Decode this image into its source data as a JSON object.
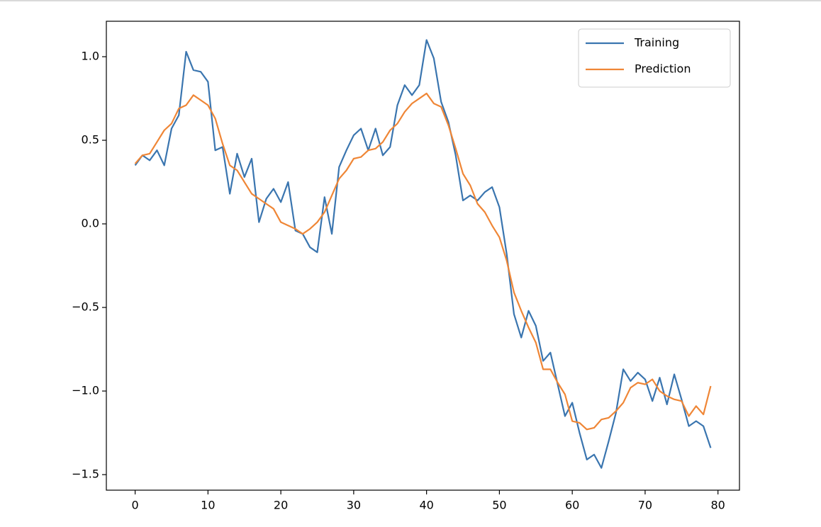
{
  "chart_data": {
    "type": "line",
    "x": [
      0,
      1,
      2,
      3,
      4,
      5,
      6,
      7,
      8,
      9,
      10,
      11,
      12,
      13,
      14,
      15,
      16,
      17,
      18,
      19,
      20,
      21,
      22,
      23,
      24,
      25,
      26,
      27,
      28,
      29,
      30,
      31,
      32,
      33,
      34,
      35,
      36,
      37,
      38,
      39,
      40,
      41,
      42,
      43,
      44,
      45,
      46,
      47,
      48,
      49,
      50,
      51,
      52,
      53,
      54,
      55,
      56,
      57,
      58,
      59,
      60,
      61,
      62,
      63,
      64,
      65,
      66,
      67,
      68,
      69,
      70,
      71,
      72,
      73,
      74,
      75,
      76,
      77,
      78,
      79
    ],
    "series": [
      {
        "name": "Training",
        "color": "#3a75af",
        "values": [
          0.35,
          0.41,
          0.38,
          0.44,
          0.35,
          0.57,
          0.65,
          1.03,
          0.92,
          0.91,
          0.85,
          0.44,
          0.46,
          0.18,
          0.42,
          0.28,
          0.39,
          0.01,
          0.15,
          0.21,
          0.13,
          0.25,
          -0.04,
          -0.06,
          -0.14,
          -0.17,
          0.16,
          -0.06,
          0.34,
          0.44,
          0.53,
          0.57,
          0.44,
          0.57,
          0.41,
          0.46,
          0.71,
          0.83,
          0.77,
          0.83,
          1.1,
          0.99,
          0.73,
          0.61,
          0.41,
          0.14,
          0.17,
          0.14,
          0.19,
          0.22,
          0.1,
          -0.18,
          -0.54,
          -0.68,
          -0.52,
          -0.61,
          -0.82,
          -0.77,
          -0.96,
          -1.15,
          -1.07,
          -1.25,
          -1.41,
          -1.38,
          -1.46,
          -1.3,
          -1.13,
          -0.87,
          -0.94,
          -0.89,
          -0.93,
          -1.06,
          -0.92,
          -1.08,
          -0.9,
          -1.05,
          -1.21,
          -1.18,
          -1.21,
          -1.34
        ]
      },
      {
        "name": "Prediction",
        "color": "#ef8636",
        "values": [
          0.36,
          0.41,
          0.42,
          0.49,
          0.56,
          0.6,
          0.69,
          0.71,
          0.77,
          0.74,
          0.71,
          0.63,
          0.48,
          0.35,
          0.32,
          0.25,
          0.18,
          0.15,
          0.12,
          0.09,
          0.01,
          -0.01,
          -0.03,
          -0.06,
          -0.03,
          0.01,
          0.07,
          0.17,
          0.27,
          0.32,
          0.39,
          0.4,
          0.44,
          0.45,
          0.49,
          0.56,
          0.6,
          0.67,
          0.72,
          0.75,
          0.78,
          0.72,
          0.7,
          0.59,
          0.45,
          0.3,
          0.23,
          0.12,
          0.07,
          -0.01,
          -0.08,
          -0.22,
          -0.41,
          -0.52,
          -0.62,
          -0.71,
          -0.87,
          -0.87,
          -0.95,
          -1.02,
          -1.18,
          -1.19,
          -1.23,
          -1.22,
          -1.17,
          -1.16,
          -1.12,
          -1.07,
          -0.98,
          -0.95,
          -0.96,
          -0.93,
          -1.0,
          -1.03,
          -1.05,
          -1.06,
          -1.15,
          -1.09,
          -1.14,
          -0.97
        ]
      }
    ],
    "xlim": [
      -3.95,
      82.95
    ],
    "xticks": [
      0,
      10,
      20,
      30,
      40,
      50,
      60,
      70,
      80
    ],
    "ylim": [
      -1.593,
      1.212
    ],
    "yticks": [
      {
        "value": -1.5,
        "label": "−1.5"
      },
      {
        "value": -1.0,
        "label": "−1.0"
      },
      {
        "value": -0.5,
        "label": "−0.5"
      },
      {
        "value": 0,
        "label": "0.0"
      },
      {
        "value": 0.5,
        "label": "0.5"
      },
      {
        "value": 1.0,
        "label": "1.0"
      }
    ],
    "legend": "upper right"
  }
}
